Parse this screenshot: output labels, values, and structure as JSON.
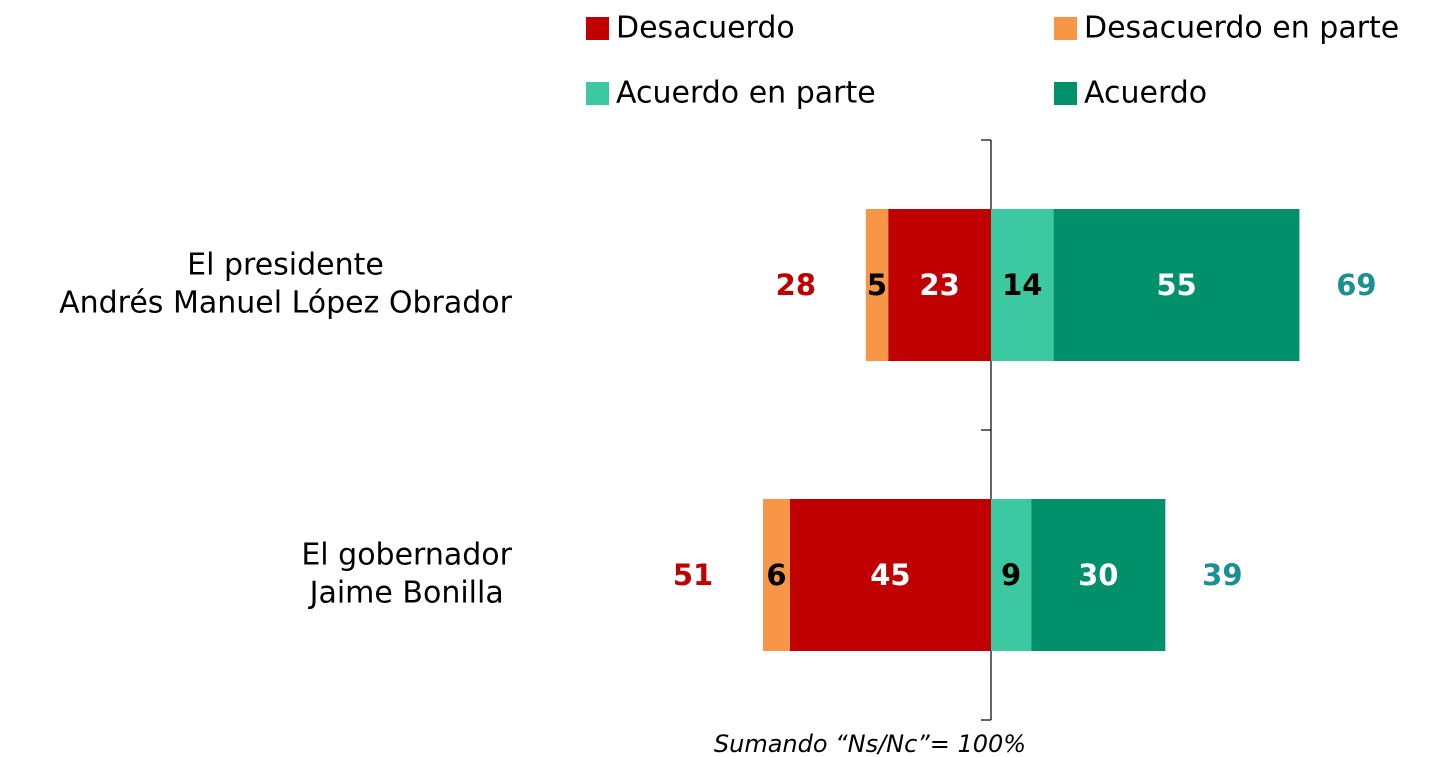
{
  "chart_data": {
    "type": "diverging_bar",
    "categories": [
      [
        "El presidente",
        "Andrés Manuel López Obrador"
      ],
      [
        "El gobernador",
        "Jaime Bonilla"
      ]
    ],
    "series": [
      {
        "name": "Desacuerdo",
        "color": "#c00000",
        "label_color": "#ffffff",
        "side": "negative",
        "values": [
          23,
          45
        ]
      },
      {
        "name": "Desacuerdo en parte",
        "color": "#f79646",
        "label_color": "#000000",
        "side": "negative",
        "values": [
          5,
          6
        ]
      },
      {
        "name": "Acuerdo en parte",
        "color": "#3cc8a0",
        "label_color": "#000000",
        "side": "positive",
        "values": [
          14,
          9
        ]
      },
      {
        "name": "Acuerdo",
        "color": "#00916b",
        "label_color": "#ffffff",
        "side": "positive",
        "values": [
          55,
          30
        ]
      }
    ],
    "totals_negative": {
      "color": "#c00000",
      "values": [
        28,
        51
      ]
    },
    "totals_positive": {
      "color": "#1a9090",
      "values": [
        69,
        39
      ]
    },
    "note": "Sumando “Ns/Nc”= 100%"
  }
}
